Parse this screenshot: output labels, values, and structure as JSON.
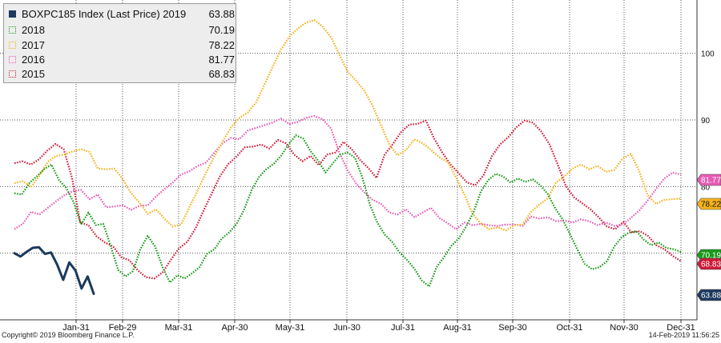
{
  "chart_data": {
    "type": "line",
    "x_ticks": [
      "Jan-31",
      "Feb-29",
      "Mar-31",
      "Apr-30",
      "May-31",
      "Jun-30",
      "Jul-31",
      "Aug-31",
      "Sep-30",
      "Oct-31",
      "Nov-30",
      "Dec-31"
    ],
    "y_ticks": [
      70,
      80,
      90,
      100
    ],
    "ylim": [
      60,
      108
    ],
    "grid": true,
    "legend_placement": "top-left",
    "series": [
      {
        "name": "BOXPC185 Index  (Last Price) 2019",
        "last": "63.88",
        "color": "#1c3a5e",
        "style": "solid",
        "values": [
          70.0,
          69.5,
          70.2,
          70.8,
          70.9,
          69.9,
          70.1,
          68.3,
          66.0,
          68.6,
          67.4,
          64.7,
          66.5,
          63.9
        ]
      },
      {
        "name": "2018",
        "last": "70.19",
        "color": "#1a9a1a",
        "style": "dotted",
        "values": [
          79,
          78.8,
          80.5,
          81.5,
          82.6,
          83.3,
          81.0,
          79.8,
          77.6,
          74.3,
          76.1,
          74.2,
          74.4,
          71.1,
          67.5,
          66.5,
          67.3,
          70.6,
          72.6,
          71.0,
          67.9,
          65.6,
          66.7,
          66.2,
          67.0,
          67.9,
          69.9,
          70.6,
          72.2,
          73.1,
          74.4,
          76.5,
          79.4,
          81.4,
          82.6,
          83.4,
          84.6,
          86.3,
          87.7,
          87.2,
          85.3,
          83.9,
          82.1,
          83.5,
          84.8,
          85.1,
          84.3,
          81.3,
          77.3,
          74.6,
          72.8,
          71.7,
          70.1,
          69.0,
          67.7,
          65.9,
          65.0,
          67.9,
          69.4,
          71.1,
          72.2,
          74.0,
          76.2,
          79.3,
          81.0,
          81.9,
          81.5,
          80.6,
          81.2,
          80.7,
          81.1,
          80.2,
          78.9,
          76.8,
          75.1,
          72.9,
          70.6,
          68.4,
          67.6,
          67.9,
          68.8,
          71.0,
          72.4,
          73.1,
          73.3,
          72.0,
          71.2,
          71.6,
          70.8,
          70.6,
          70.2
        ]
      },
      {
        "name": "2017",
        "last": "78.22",
        "color": "#f4b21c",
        "style": "dotted",
        "values": [
          80.5,
          80.8,
          80.0,
          81.6,
          83.7,
          84.6,
          84.8,
          85.3,
          85.6,
          85.2,
          82.7,
          82.6,
          82.7,
          81.1,
          79.0,
          77.6,
          75.9,
          76.6,
          75.2,
          74.0,
          74.3,
          76.9,
          79.4,
          82.1,
          84.5,
          86.8,
          88.9,
          90.3,
          91.1,
          92.6,
          95.3,
          98.0,
          100.6,
          102.5,
          103.7,
          104.6,
          105.0,
          104.0,
          102.4,
          99.8,
          97.2,
          95.9,
          94.4,
          92.1,
          89.2,
          86.3,
          84.7,
          85.5,
          87.1,
          86.5,
          85.5,
          84.4,
          83.7,
          81.4,
          78.8,
          75.9,
          74.4,
          73.6,
          73.9,
          73.4,
          74.2,
          74.3,
          76.2,
          77.3,
          78.2,
          80.6,
          81.5,
          82.7,
          83.3,
          82.6,
          83.1,
          82.2,
          82.5,
          84.2,
          84.9,
          82.3,
          78.7,
          77.4,
          78.0,
          78.1,
          78.2
        ]
      },
      {
        "name": "2016",
        "last": "81.77",
        "color": "#e75bb5",
        "style": "dotted",
        "values": [
          73.6,
          74.4,
          76.2,
          75.8,
          76.8,
          77.8,
          78.7,
          79.3,
          79.5,
          78.1,
          78.8,
          76.9,
          77.0,
          77.2,
          76.5,
          77.1,
          77.2,
          78.5,
          79.6,
          80.6,
          81.8,
          82.3,
          83.1,
          83.6,
          85.1,
          86.5,
          87.3,
          87.1,
          88.4,
          88.8,
          89.2,
          89.6,
          90.2,
          89.4,
          89.7,
          90.3,
          90.6,
          90.1,
          88.7,
          85.1,
          82.4,
          80.5,
          79.1,
          78.0,
          77.4,
          76.1,
          75.8,
          76.6,
          75.4,
          76.1,
          76.8,
          75.3,
          74.5,
          73.6,
          74.6,
          74.2,
          74.4,
          74.2,
          74.1,
          74.3,
          74.3,
          74.1,
          75.5,
          75.2,
          75.4,
          74.8,
          74.9,
          74.6,
          75.1,
          74.8,
          74.2,
          74.6,
          74.1,
          74.3,
          75.3,
          76.4,
          77.9,
          79.6,
          81.2,
          82.1,
          81.8
        ]
      },
      {
        "name": "2015",
        "last": "68.83",
        "color": "#cf1b39",
        "style": "dotted",
        "values": [
          83.5,
          83.8,
          83.3,
          84.1,
          85.4,
          86.4,
          85.6,
          81.3,
          74.6,
          74.2,
          72.5,
          71.6,
          71.0,
          69.4,
          68.9,
          67.4,
          66.4,
          66.2,
          67.1,
          69.0,
          70.7,
          71.7,
          73.7,
          76.4,
          79.0,
          81.6,
          83.4,
          84.5,
          85.9,
          86.0,
          86.3,
          85.7,
          87.0,
          86.5,
          84.8,
          83.8,
          84.6,
          83.2,
          84.8,
          85.1,
          86.7,
          85.6,
          84.0,
          82.8,
          81.3,
          84.8,
          86.4,
          88.2,
          89.3,
          89.4,
          89.9,
          87.2,
          85.1,
          83.3,
          82.0,
          80.6,
          80.2,
          81.7,
          84.5,
          86.3,
          87.4,
          88.9,
          89.9,
          89.6,
          88.3,
          86.4,
          83.4,
          80.1,
          78.4,
          77.5,
          76.6,
          75.4,
          74.0,
          73.6,
          74.7,
          73.1,
          73.3,
          72.6,
          71.2,
          70.6,
          69.6,
          68.8
        ]
      }
    ]
  },
  "footer": {
    "copyright": "Copyright© 2019 Bloomberg Finance L.P.",
    "timestamp": "14-Feb-2019 11:56:25"
  }
}
